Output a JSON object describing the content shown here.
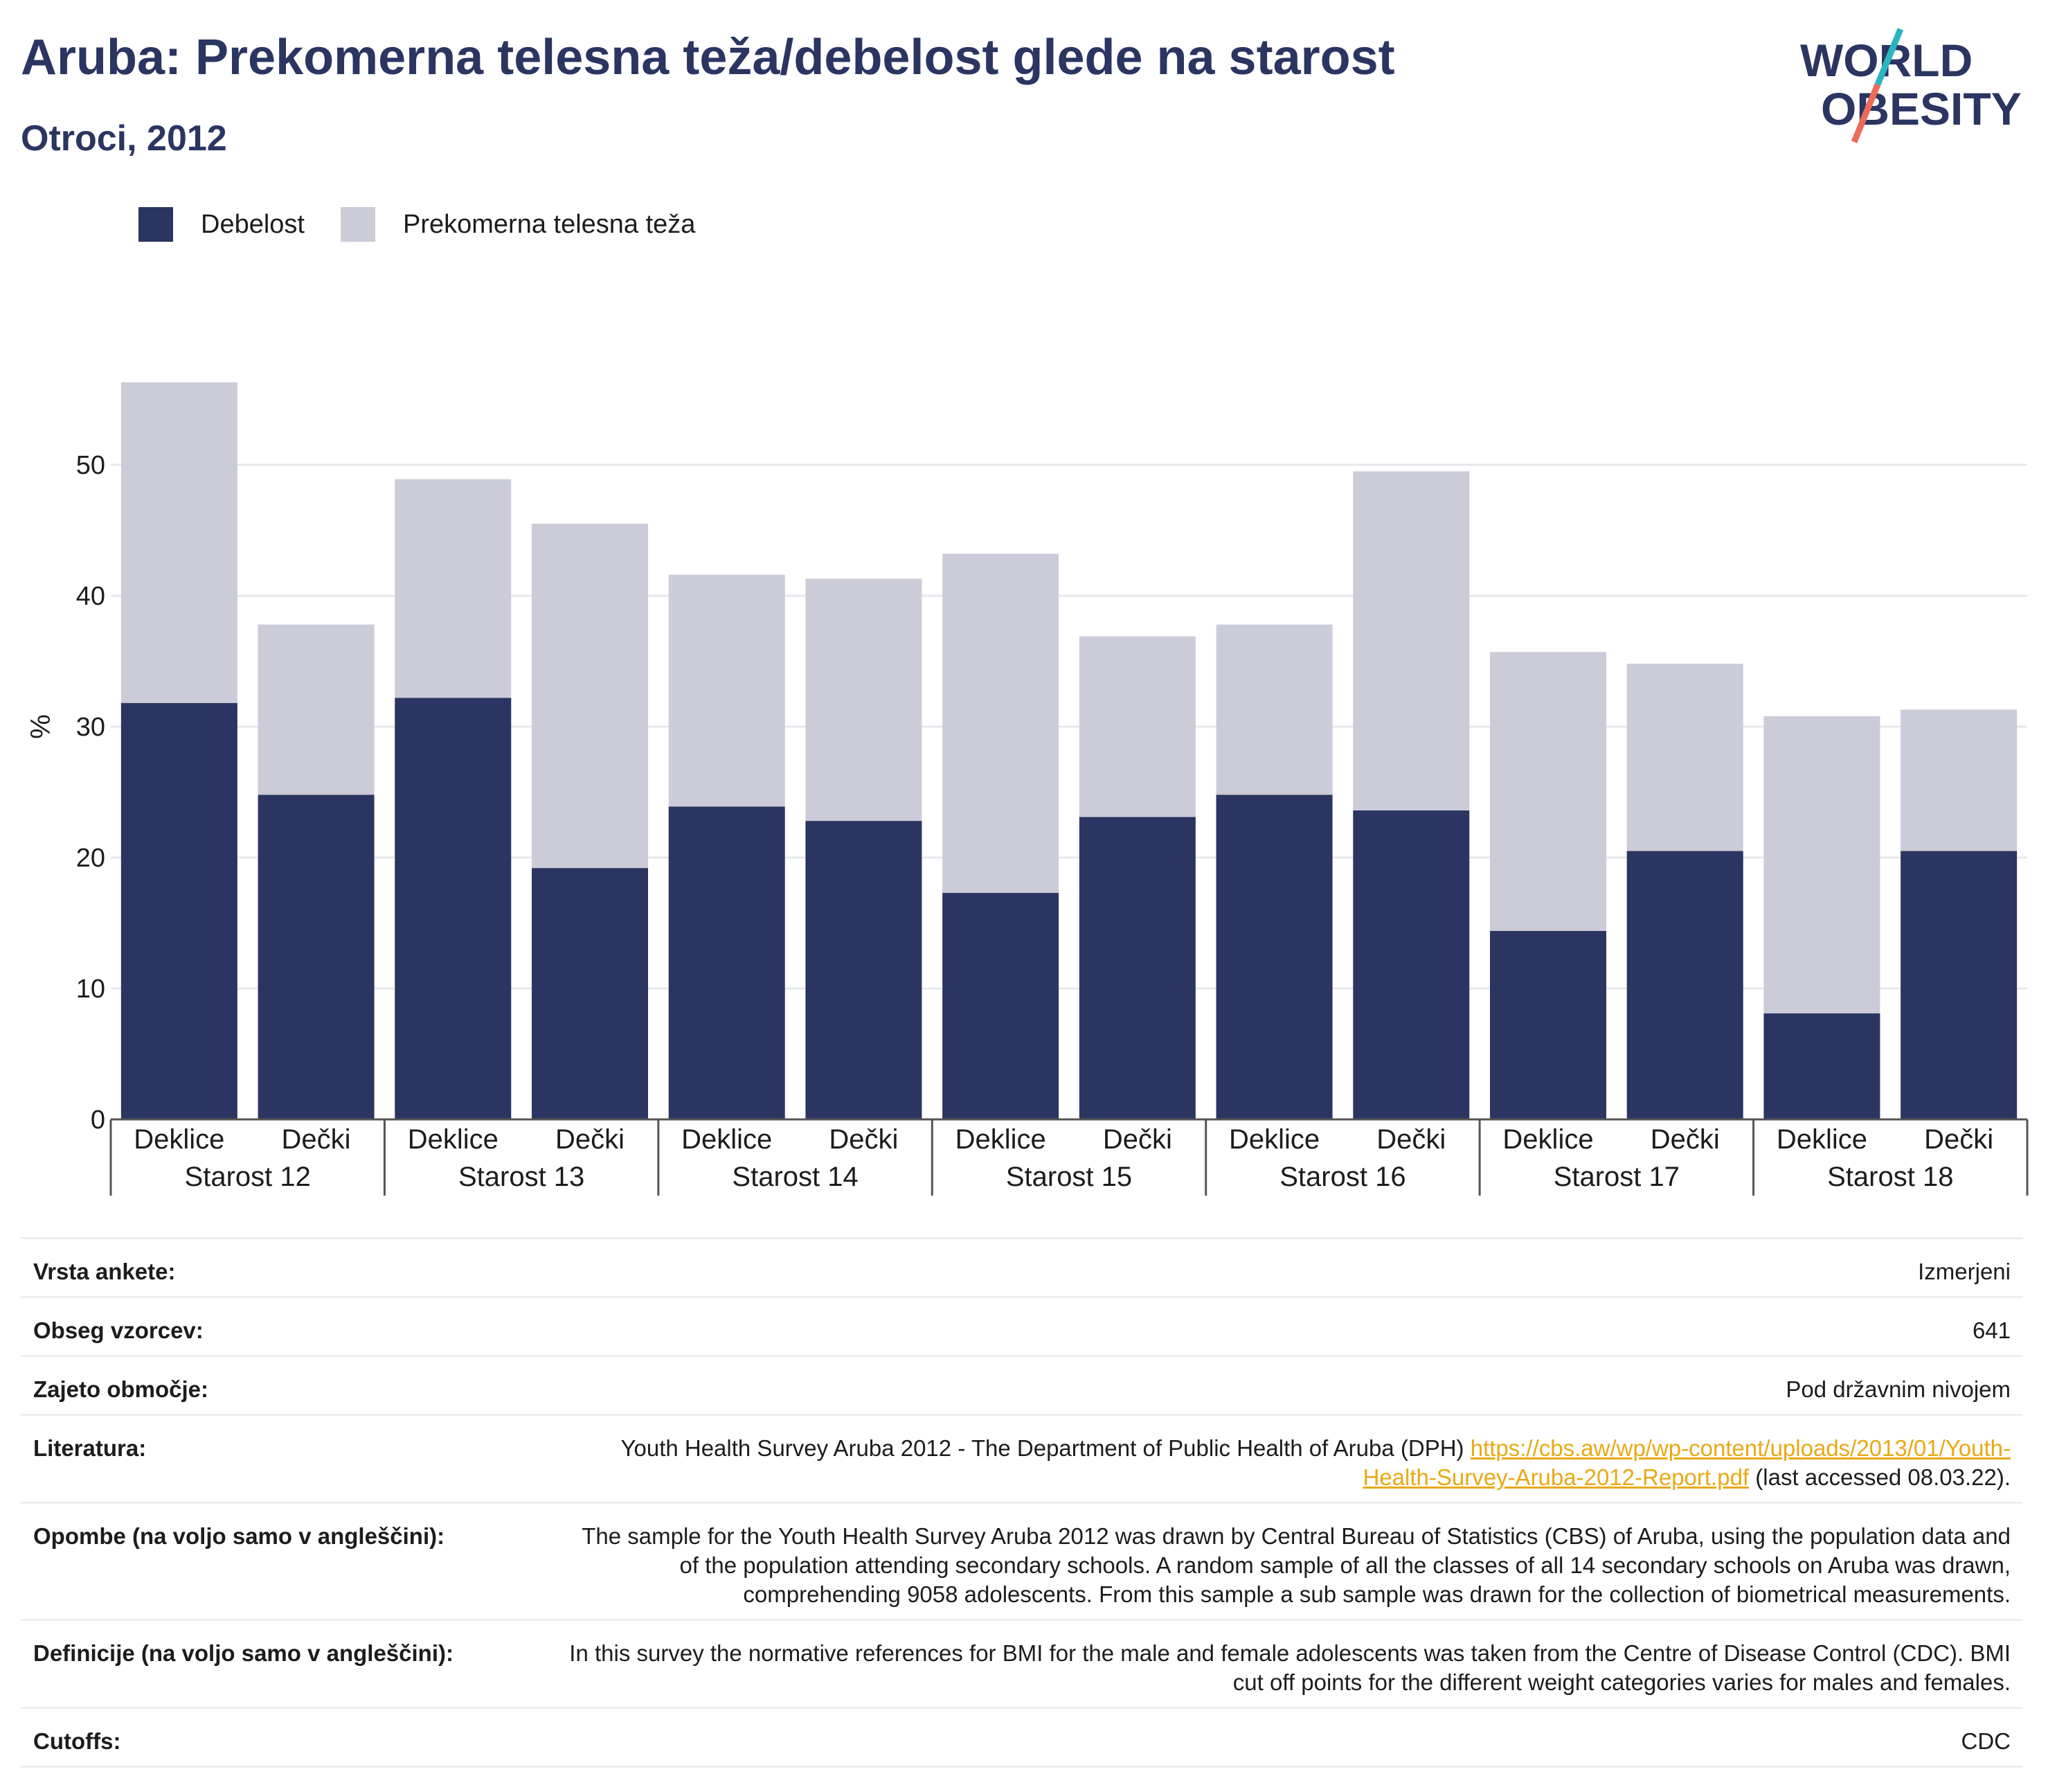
{
  "header": {
    "title": "Aruba: Prekomerna telesna teža/debelost glede na starost",
    "subtitle": "Otroci, 2012",
    "logo": {
      "line1": "WORLD",
      "line2": "OBESITY",
      "colors": {
        "text": "#2a3561",
        "slash_teal": "#2bb5c0",
        "slash_coral": "#ec6a5a"
      }
    }
  },
  "colors": {
    "obesity": "#2a3561",
    "overweight": "#cbccd8",
    "grid": "#e7e8ee",
    "axis": "#555555",
    "link": "#e8a915"
  },
  "chart_data": {
    "type": "bar",
    "stacked": true,
    "ylabel": "%",
    "ylim": [
      0,
      57
    ],
    "yticks": [
      0,
      10,
      20,
      30,
      40,
      50
    ],
    "grid": true,
    "legend_position": "top-left",
    "groups": [
      "Starost 12",
      "Starost 13",
      "Starost 14",
      "Starost 15",
      "Starost 16",
      "Starost 17",
      "Starost 18"
    ],
    "subcategories": [
      "Deklice",
      "Dečki"
    ],
    "series": [
      {
        "name": "Debelost",
        "color": "#2a3561",
        "values": [
          31.8,
          24.8,
          32.2,
          19.2,
          23.9,
          22.8,
          17.3,
          23.1,
          24.8,
          23.6,
          14.4,
          20.5,
          8.1,
          20.5
        ]
      },
      {
        "name": "Prekomerna telesna teža",
        "color": "#cbccd8",
        "values": [
          24.5,
          13.0,
          16.7,
          26.3,
          17.7,
          18.5,
          25.9,
          13.8,
          13.0,
          25.9,
          21.3,
          14.3,
          22.7,
          10.8
        ]
      }
    ]
  },
  "meta": {
    "rows": [
      {
        "label": "Vrsta ankete:",
        "value": "Izmerjeni"
      },
      {
        "label": "Obseg vzorcev:",
        "value": "641"
      },
      {
        "label": "Zajeto območje:",
        "value": "Pod državnim nivojem"
      },
      {
        "label": "Literatura:",
        "value": "Youth Health Survey Aruba 2012 - The Department of Public Health of Aruba (DPH)",
        "link": "https://cbs.aw/wp/wp-content/uploads/2013/01/Youth-Health-Survey-Aruba-2012-Report.pdf",
        "suffix": "(last accessed 08.03.22)."
      },
      {
        "label": "Opombe (na voljo samo v angleščini):",
        "value": "The sample for the Youth Health Survey Aruba 2012 was drawn by Central Bureau of Statistics (CBS) of Aruba, using the population data and of the population attending secondary schools. A random sample of all the classes of all 14 secondary schools on Aruba was drawn, comprehending 9058 adolescents. From this sample a sub sample was drawn for the collection of biometrical measurements."
      },
      {
        "label": "Definicije (na voljo samo v angleščini):",
        "value": "In this survey the normative references for BMI for the male and female adolescents was taken from the Centre of Disease Control (CDC). BMI cut off points for the different weight categories varies for males and females."
      },
      {
        "label": "Cutoffs:",
        "value": "CDC"
      }
    ]
  }
}
